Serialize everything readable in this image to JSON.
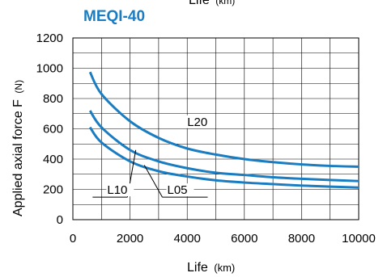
{
  "chart_data": {
    "type": "line",
    "title": "MEQI-40",
    "top_label": "Life",
    "top_label_unit": "(km)",
    "xlabel": "Life",
    "xlabel_unit": "(km)",
    "ylabel": "Applied axial force F",
    "ylabel_unit": "(N)",
    "xlim": [
      0,
      10000
    ],
    "ylim": [
      0,
      1200
    ],
    "xticks": [
      0,
      2000,
      4000,
      6000,
      8000,
      10000
    ],
    "yticks": [
      0,
      200,
      400,
      600,
      800,
      1000,
      1200
    ],
    "grid": true,
    "colors": {
      "curve": "#1a7cc1",
      "title": "#1a7cc1",
      "grid": "#000000"
    },
    "series": [
      {
        "name": "L20",
        "x": [
          600,
          1000,
          2000,
          3000,
          4000,
          5000,
          6000,
          7000,
          8000,
          9000,
          10000
        ],
        "y": [
          975,
          830,
          650,
          540,
          470,
          430,
          400,
          380,
          365,
          355,
          350
        ]
      },
      {
        "name": "L10",
        "x": [
          600,
          1000,
          2000,
          3000,
          4000,
          5000,
          6000,
          7000,
          8000,
          9000,
          10000
        ],
        "y": [
          720,
          610,
          460,
          385,
          340,
          310,
          295,
          280,
          270,
          262,
          255
        ]
      },
      {
        "name": "L05",
        "x": [
          600,
          1000,
          2000,
          3000,
          4000,
          5000,
          6000,
          7000,
          8000,
          9000,
          10000
        ],
        "y": [
          610,
          510,
          385,
          320,
          285,
          260,
          245,
          235,
          225,
          218,
          212
        ]
      }
    ],
    "annotations": [
      {
        "text": "L20",
        "x": 4000,
        "y": 620,
        "series": "L20"
      },
      {
        "text": "L10",
        "x": 1200,
        "y": 170,
        "series": "L10",
        "leader_to": [
          2200,
          460
        ]
      },
      {
        "text": "L05",
        "x": 3300,
        "y": 170,
        "series": "L05",
        "leader_to": [
          2500,
          360
        ]
      }
    ]
  }
}
